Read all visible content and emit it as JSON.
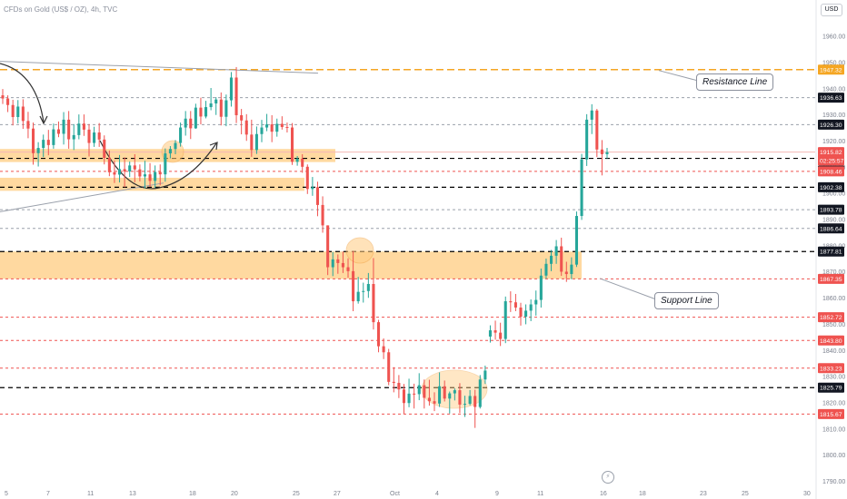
{
  "header": {
    "title": "CFDs on Gold (US$ / OZ), 4h, TVC"
  },
  "currency_button": "USD",
  "colors": {
    "up": "#26a69a",
    "down": "#ef5350",
    "zone": "#ffcc80",
    "resistance": "#f5a623",
    "black_level": "#000000",
    "red_level": "#ef5350",
    "grey_level": "#9aa0ab"
  },
  "indicator_icon": "lightning-icon",
  "callouts": {
    "resistance": "Resistance Line",
    "support": "Support Line"
  },
  "chart_data": {
    "type": "candlestick",
    "symbol": "CFDs on Gold (US$ / OZ)",
    "timeframe": "4h",
    "y_range": [
      1786,
      1967
    ],
    "y_ticks": [
      1790,
      1800,
      1810,
      1820,
      1830,
      1840,
      1850,
      1860,
      1870,
      1880,
      1890,
      1900,
      1910,
      1920,
      1930,
      1940,
      1950,
      1960
    ],
    "x_tick_labels": [
      "5",
      "7",
      "11",
      "13",
      "18",
      "20",
      "25",
      "27",
      "Oct",
      "4",
      "9",
      "11",
      "16",
      "18",
      "23",
      "25",
      "30"
    ],
    "price_labels": [
      {
        "value": 1947.32,
        "text": "1947.32",
        "style": "resistance"
      },
      {
        "value": 1936.63,
        "text": "1936.63",
        "style": "black"
      },
      {
        "value": 1926.3,
        "text": "1926.30",
        "style": "black"
      },
      {
        "value": 1915.82,
        "text": "1915.82",
        "style": "red"
      },
      {
        "value": 1912.5,
        "text": "02:25:57",
        "style": "red"
      },
      {
        "value": 1913.41,
        "text": "1913.41",
        "style": "black",
        "offset": 1
      },
      {
        "value": 1908.46,
        "text": "1908.46",
        "style": "red"
      },
      {
        "value": 1902.38,
        "text": "1902.38",
        "style": "black"
      },
      {
        "value": 1893.78,
        "text": "1893.78",
        "style": "black"
      },
      {
        "value": 1886.64,
        "text": "1886.64",
        "style": "black"
      },
      {
        "value": 1877.81,
        "text": "1877.81",
        "style": "black"
      },
      {
        "value": 1867.35,
        "text": "1867.35",
        "style": "red"
      },
      {
        "value": 1852.72,
        "text": "1852.72",
        "style": "red"
      },
      {
        "value": 1843.8,
        "text": "1843.80",
        "style": "red"
      },
      {
        "value": 1833.23,
        "text": "1833.23",
        "style": "red"
      },
      {
        "value": 1825.79,
        "text": "1825.79",
        "style": "black"
      },
      {
        "value": 1815.67,
        "text": "1815.67",
        "style": "red"
      }
    ],
    "horizontal_levels": [
      {
        "value": 1947.32,
        "style": "resistance"
      },
      {
        "value": 1936.63,
        "style": "grey"
      },
      {
        "value": 1926.3,
        "style": "grey"
      },
      {
        "value": 1913.41,
        "style": "black"
      },
      {
        "value": 1908.46,
        "style": "red"
      },
      {
        "value": 1902.38,
        "style": "black"
      },
      {
        "value": 1893.78,
        "style": "grey"
      },
      {
        "value": 1886.64,
        "style": "grey"
      },
      {
        "value": 1877.81,
        "style": "black"
      },
      {
        "value": 1867.35,
        "style": "red"
      },
      {
        "value": 1852.72,
        "style": "red"
      },
      {
        "value": 1843.8,
        "style": "red"
      },
      {
        "value": 1833.23,
        "style": "red"
      },
      {
        "value": 1825.79,
        "style": "black"
      },
      {
        "value": 1815.67,
        "style": "red"
      }
    ],
    "zones": [
      {
        "low": 1912,
        "high": 1917,
        "x_from": 0,
        "x_to": 1.0
      },
      {
        "low": 1901,
        "high": 1906,
        "x_from": 0,
        "x_to": 0.9
      },
      {
        "low": 1867.35,
        "high": 1877.81,
        "x_from": 0,
        "x_to": 1.0
      }
    ],
    "candles": [
      [
        1937.5,
        1939.9,
        1934.2,
        1936.3
      ],
      [
        1936.3,
        1937.5,
        1931.1,
        1933.8
      ],
      [
        1933.8,
        1935.8,
        1926.0,
        1929.2
      ],
      [
        1929.2,
        1935.7,
        1926.8,
        1933.2
      ],
      [
        1933.2,
        1936.0,
        1924.7,
        1927.7
      ],
      [
        1927.7,
        1931.2,
        1921.1,
        1924.8
      ],
      [
        1924.8,
        1927.1,
        1911.0,
        1915.4
      ],
      [
        1915.4,
        1919.6,
        1910.3,
        1917.4
      ],
      [
        1917.4,
        1922.5,
        1913.9,
        1920.5
      ],
      [
        1920.5,
        1924.3,
        1914.6,
        1918.5
      ],
      [
        1918.5,
        1926.7,
        1917.1,
        1924.5
      ],
      [
        1924.5,
        1927.5,
        1921.5,
        1922.8
      ],
      [
        1922.8,
        1931.1,
        1918.7,
        1928.2
      ],
      [
        1928.2,
        1931.5,
        1917.1,
        1920.7
      ],
      [
        1920.7,
        1926.5,
        1916.6,
        1922.3
      ],
      [
        1922.3,
        1930.2,
        1920.7,
        1926.7
      ],
      [
        1926.7,
        1930.2,
        1922.0,
        1924.4
      ],
      [
        1924.4,
        1926.5,
        1914.1,
        1919.3
      ],
      [
        1919.3,
        1925.5,
        1917.8,
        1923.3
      ],
      [
        1923.3,
        1926.9,
        1917.8,
        1920.6
      ],
      [
        1920.6,
        1922.2,
        1911.1,
        1913.6
      ],
      [
        1913.6,
        1916.4,
        1906.6,
        1908.1
      ],
      [
        1908.1,
        1912.6,
        1904.0,
        1907.2
      ],
      [
        1907.2,
        1914.7,
        1904.2,
        1909.3
      ],
      [
        1909.3,
        1913.8,
        1902.4,
        1908.4
      ],
      [
        1908.4,
        1912.2,
        1906.3,
        1910.7
      ],
      [
        1910.7,
        1915.0,
        1904.3,
        1909.2
      ],
      [
        1909.2,
        1911.1,
        1904.6,
        1906.5
      ],
      [
        1906.5,
        1912.5,
        1901.9,
        1907.3
      ],
      [
        1907.3,
        1911.6,
        1902.5,
        1904.8
      ],
      [
        1904.8,
        1910.7,
        1902.1,
        1908.2
      ],
      [
        1908.2,
        1911.1,
        1903.1,
        1907.3
      ],
      [
        1907.3,
        1917.2,
        1904.5,
        1915.3
      ],
      [
        1915.3,
        1918.1,
        1913.4,
        1917.0
      ],
      [
        1917.0,
        1920.4,
        1915.0,
        1919.3
      ],
      [
        1919.3,
        1927.1,
        1917.9,
        1925.2
      ],
      [
        1925.2,
        1931.5,
        1922.1,
        1928.6
      ],
      [
        1928.6,
        1931.5,
        1920.8,
        1924.9
      ],
      [
        1924.9,
        1934.3,
        1924.7,
        1932.8
      ],
      [
        1932.8,
        1936.6,
        1926.4,
        1929.4
      ],
      [
        1929.4,
        1935.4,
        1928.7,
        1933.0
      ],
      [
        1933.0,
        1940.3,
        1931.8,
        1934.4
      ],
      [
        1934.4,
        1936.8,
        1930.0,
        1935.9
      ],
      [
        1935.9,
        1938.6,
        1926.0,
        1929.3
      ],
      [
        1929.3,
        1937.8,
        1925.7,
        1935.6
      ],
      [
        1935.6,
        1946.4,
        1933.2,
        1944.3
      ],
      [
        1944.3,
        1948.3,
        1926.9,
        1929.9
      ],
      [
        1929.9,
        1932.3,
        1922.6,
        1927.9
      ],
      [
        1927.9,
        1930.3,
        1920.1,
        1922.5
      ],
      [
        1922.5,
        1928.2,
        1914.0,
        1916.6
      ],
      [
        1916.6,
        1925.6,
        1915.1,
        1922.7
      ],
      [
        1922.7,
        1928.1,
        1919.6,
        1925.2
      ],
      [
        1925.2,
        1930.4,
        1923.8,
        1926.4
      ],
      [
        1926.4,
        1929.9,
        1919.6,
        1923.6
      ],
      [
        1923.6,
        1928.6,
        1921.7,
        1926.6
      ],
      [
        1926.6,
        1929.5,
        1924.4,
        1925.4
      ],
      [
        1925.4,
        1927.1,
        1923.3,
        1925.2
      ],
      [
        1925.2,
        1926.9,
        1910.9,
        1912.1
      ],
      [
        1912.1,
        1914.3,
        1910.6,
        1913.3
      ],
      [
        1913.3,
        1915.0,
        1907.9,
        1910.2
      ],
      [
        1910.2,
        1911.1,
        1899.8,
        1901.7
      ],
      [
        1901.7,
        1906.3,
        1899.1,
        1902.4
      ],
      [
        1902.4,
        1904.5,
        1891.3,
        1895.6
      ],
      [
        1895.6,
        1898.9,
        1885.0,
        1887.8
      ],
      [
        1887.8,
        1887.8,
        1868.8,
        1871.8
      ],
      [
        1871.8,
        1877.6,
        1868.4,
        1874.8
      ],
      [
        1874.8,
        1876.7,
        1869.3,
        1873.4
      ],
      [
        1873.4,
        1877.8,
        1869.6,
        1871.8
      ],
      [
        1871.8,
        1875.2,
        1867.8,
        1870.3
      ],
      [
        1870.3,
        1878.0,
        1855.0,
        1858.8
      ],
      [
        1858.8,
        1868.1,
        1857.9,
        1862.4
      ],
      [
        1862.4,
        1865.9,
        1858.3,
        1862.7
      ],
      [
        1862.7,
        1869.6,
        1860.1,
        1865.4
      ],
      [
        1865.4,
        1875.3,
        1848.0,
        1850.8
      ],
      [
        1850.8,
        1851.7,
        1839.3,
        1841.6
      ],
      [
        1841.6,
        1844.6,
        1836.7,
        1839.3
      ],
      [
        1839.3,
        1840.6,
        1826.7,
        1828.0
      ],
      [
        1828.0,
        1833.6,
        1824.0,
        1827.6
      ],
      [
        1827.6,
        1830.6,
        1821.8,
        1825.1
      ],
      [
        1825.1,
        1827.2,
        1815.6,
        1819.9
      ],
      [
        1819.9,
        1829.2,
        1818.3,
        1823.5
      ],
      [
        1823.5,
        1827.3,
        1817.8,
        1823.3
      ],
      [
        1823.3,
        1831.3,
        1821.0,
        1826.7
      ],
      [
        1826.7,
        1828.9,
        1817.8,
        1821.9
      ],
      [
        1821.9,
        1828.8,
        1818.9,
        1820.6
      ],
      [
        1820.6,
        1824.0,
        1816.8,
        1819.7
      ],
      [
        1819.7,
        1831.6,
        1818.4,
        1826.3
      ],
      [
        1826.3,
        1828.5,
        1820.5,
        1821.6
      ],
      [
        1821.6,
        1824.3,
        1815.9,
        1823.6
      ],
      [
        1823.6,
        1825.5,
        1820.9,
        1824.8
      ],
      [
        1824.8,
        1827.5,
        1816.1,
        1819.3
      ],
      [
        1819.3,
        1822.7,
        1814.6,
        1819.6
      ],
      [
        1819.6,
        1824.9,
        1819.0,
        1822.6
      ],
      [
        1822.6,
        1825.0,
        1810.4,
        1818.4
      ],
      [
        1818.4,
        1830.6,
        1817.8,
        1828.9
      ],
      [
        1828.9,
        1834.2,
        1827.2,
        1832.3
      ],
      [
        1845.3,
        1849.6,
        1843.0,
        1847.7
      ],
      [
        1847.7,
        1851.4,
        1844.1,
        1846.8
      ],
      [
        1846.8,
        1850.6,
        1841.7,
        1844.4
      ],
      [
        1844.4,
        1860.6,
        1842.8,
        1858.8
      ],
      [
        1858.8,
        1862.6,
        1854.7,
        1858.4
      ],
      [
        1858.4,
        1861.6,
        1855.0,
        1856.4
      ],
      [
        1856.4,
        1858.2,
        1849.5,
        1852.9
      ],
      [
        1852.9,
        1857.6,
        1850.0,
        1855.2
      ],
      [
        1855.2,
        1859.5,
        1851.2,
        1857.6
      ],
      [
        1857.6,
        1862.9,
        1853.3,
        1859.3
      ],
      [
        1859.3,
        1871.3,
        1856.4,
        1868.6
      ],
      [
        1868.6,
        1875.1,
        1867.4,
        1873.1
      ],
      [
        1873.1,
        1878.4,
        1870.3,
        1876.2
      ],
      [
        1876.2,
        1882.2,
        1873.1,
        1879.8
      ],
      [
        1879.8,
        1883.1,
        1868.5,
        1870.1
      ],
      [
        1870.1,
        1873.9,
        1866.2,
        1869.2
      ],
      [
        1869.2,
        1875.6,
        1867.2,
        1872.8
      ],
      [
        1872.8,
        1893.1,
        1871.9,
        1891.4
      ],
      [
        1891.4,
        1915.1,
        1889.9,
        1913.0
      ],
      [
        1913.0,
        1930.3,
        1910.5,
        1928.2
      ],
      [
        1928.2,
        1934.1,
        1922.7,
        1931.7
      ],
      [
        1931.7,
        1932.3,
        1913.9,
        1916.8
      ],
      [
        1916.8,
        1920.4,
        1906.9,
        1915.0
      ],
      [
        1915.0,
        1917.4,
        1913.3,
        1915.8
      ]
    ]
  }
}
